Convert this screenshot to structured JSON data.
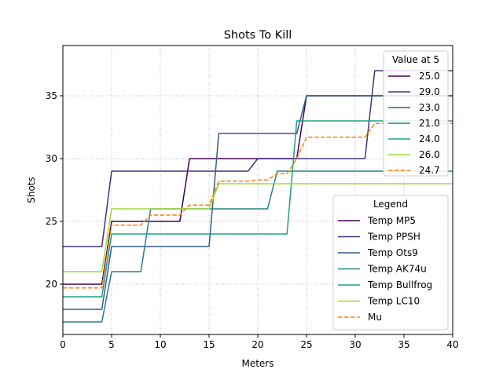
{
  "chart_data": {
    "type": "line",
    "title": "Shots To Kill",
    "xlabel": "Meters",
    "ylabel": "Shots",
    "xlim": [
      0,
      40
    ],
    "ylim": [
      16,
      39
    ],
    "xticks": [
      0,
      5,
      10,
      15,
      20,
      25,
      30,
      35,
      40
    ],
    "yticks": [
      20,
      25,
      30,
      35
    ],
    "grid": true,
    "series": [
      {
        "name": "Temp MP5",
        "color": "#440154",
        "dash": "solid",
        "x": [
          0,
          4,
          5,
          12,
          13,
          20,
          24,
          25,
          40
        ],
        "y": [
          20,
          20,
          25,
          25,
          30,
          30,
          30,
          35,
          35
        ]
      },
      {
        "name": "Temp PPSH",
        "color": "#46327e",
        "dash": "solid",
        "x": [
          0,
          4,
          5,
          19,
          20,
          31,
          32,
          40
        ],
        "y": [
          23,
          23,
          29,
          29,
          30,
          30,
          37,
          37
        ]
      },
      {
        "name": "Temp Ots9",
        "color": "#365c8d",
        "dash": "solid",
        "x": [
          0,
          4,
          5,
          15,
          16,
          24,
          25,
          40
        ],
        "y": [
          18,
          18,
          23,
          23,
          32,
          32,
          35,
          35
        ]
      },
      {
        "name": "Temp AK74u",
        "color": "#277f8e",
        "dash": "solid",
        "x": [
          0,
          4,
          5,
          8,
          9,
          21,
          22,
          40
        ],
        "y": [
          17,
          17,
          21,
          21,
          26,
          26,
          29,
          29
        ]
      },
      {
        "name": "Temp Bullfrog",
        "color": "#1fa187",
        "dash": "solid",
        "x": [
          0,
          4,
          5,
          23,
          24,
          40
        ],
        "y": [
          19,
          19,
          24,
          24,
          33,
          33
        ]
      },
      {
        "name": "Temp LC10",
        "color": "#9fda3a",
        "dash": "solid",
        "x": [
          0,
          4,
          5,
          15,
          16,
          40
        ],
        "y": [
          21,
          21,
          26,
          26,
          28,
          28
        ]
      },
      {
        "name": "Mu",
        "color": "#ff7f0e",
        "dash": "dashed",
        "x": [
          0,
          4,
          5,
          8,
          9,
          12,
          13,
          15,
          16,
          19,
          20,
          21,
          22,
          23,
          24,
          25,
          31,
          32,
          40
        ],
        "y": [
          19.7,
          19.7,
          24.7,
          24.7,
          25.5,
          25.5,
          26.3,
          26.3,
          28.2,
          28.2,
          28.3,
          28.3,
          28.8,
          28.8,
          30.0,
          31.7,
          31.7,
          32.8,
          32.8
        ]
      }
    ],
    "value_legend": {
      "title": "Value at 5",
      "placement": "upper right",
      "entries": [
        {
          "label": "25.0",
          "color": "#440154",
          "dash": "solid"
        },
        {
          "label": "29.0",
          "color": "#46327e",
          "dash": "solid"
        },
        {
          "label": "23.0",
          "color": "#365c8d",
          "dash": "solid"
        },
        {
          "label": "21.0",
          "color": "#277f8e",
          "dash": "solid"
        },
        {
          "label": "24.0",
          "color": "#1fa187",
          "dash": "solid"
        },
        {
          "label": "26.0",
          "color": "#9fda3a",
          "dash": "solid"
        },
        {
          "label": "24.7",
          "color": "#ff7f0e",
          "dash": "dashed"
        }
      ]
    },
    "legend": {
      "title": "Legend",
      "placement": "lower right"
    }
  }
}
